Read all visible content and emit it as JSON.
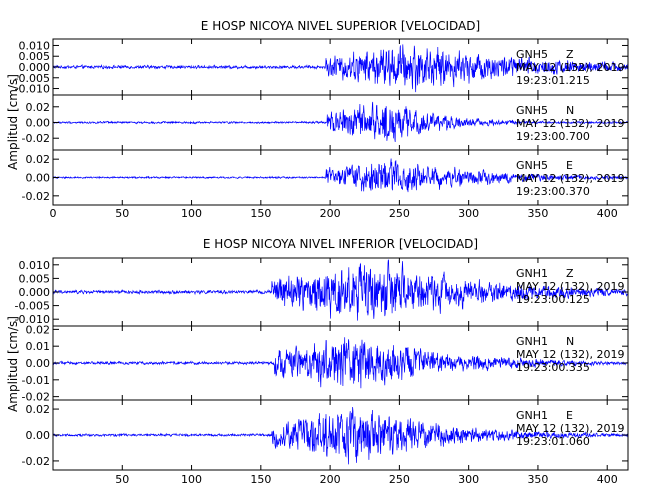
{
  "chart_data": [
    {
      "type": "line",
      "title": "E HOSP NICOYA NIVEL SUPERIOR [VELOCIDAD]",
      "ylabel": "Amplitud [cm/s]",
      "xlim": [
        0,
        415
      ],
      "x_ticks": [
        0,
        50,
        100,
        150,
        200,
        250,
        300,
        350,
        400
      ],
      "line_color": "#0000ff",
      "panels": [
        {
          "id": "sup-z",
          "station": "GNH5",
          "component": "Z",
          "date": "MAY 12 (132), 2019",
          "time": "19:23:01.215",
          "ylim": [
            -0.013,
            0.013
          ],
          "y_ticks": [
            0.01,
            0.005,
            0.0,
            -0.005,
            -0.01
          ],
          "y_tick_labels": [
            "0.010",
            "0.005",
            "0.000",
            "-0.005",
            "-0.010"
          ],
          "onset": 197,
          "peak_time": 260,
          "noise_amp": 0.0007,
          "peak_amp": 0.0105,
          "decay": 0.011
        },
        {
          "id": "sup-n",
          "station": "GNH5",
          "component": "N",
          "date": "MAY 12 (132), 2019",
          "time": "19:23:00.700",
          "ylim": [
            -0.035,
            0.035
          ],
          "y_ticks": [
            0.02,
            0.0,
            -0.02
          ],
          "y_tick_labels": [
            "0.02",
            "0.00",
            "-0.02"
          ],
          "onset": 198,
          "peak_time": 243,
          "noise_amp": 0.0012,
          "peak_amp": 0.026,
          "decay": 0.026
        },
        {
          "id": "sup-e",
          "station": "GNH5",
          "component": "E",
          "date": "MAY 12 (132), 2019",
          "time": "19:23:00.370",
          "ylim": [
            -0.03,
            0.03
          ],
          "y_ticks": [
            0.02,
            0.0,
            -0.02
          ],
          "y_tick_labels": [
            "0.02",
            "0.00",
            "-0.02"
          ],
          "onset": 197,
          "peak_time": 245,
          "noise_amp": 0.0009,
          "peak_amp": 0.02,
          "decay": 0.016
        }
      ]
    },
    {
      "type": "line",
      "title": "E HOSP NICOYA NIVEL INFERIOR [VELOCIDAD]",
      "ylabel": "Amplitud [cm/s]",
      "xlim": [
        0,
        415
      ],
      "x_ticks": [
        50,
        100,
        150,
        200,
        250,
        300,
        350,
        400
      ],
      "line_color": "#0000ff",
      "panels": [
        {
          "id": "inf-z",
          "station": "GNH1",
          "component": "Z",
          "date": "MAY 12 (132), 2019",
          "time": "19:23:00.125",
          "ylim": [
            -0.0125,
            0.0125
          ],
          "y_ticks": [
            0.01,
            0.005,
            0.0,
            -0.005,
            -0.01
          ],
          "y_tick_labels": [
            "0.010",
            "0.005",
            "0.000",
            "-0.005",
            "-0.010"
          ],
          "onset": 158,
          "peak_time": 230,
          "noise_amp": 0.0006,
          "peak_amp": 0.011,
          "decay": 0.012
        },
        {
          "id": "inf-n",
          "station": "GNH1",
          "component": "N",
          "date": "MAY 12 (132), 2019",
          "time": "19:23:00.335",
          "ylim": [
            -0.022,
            0.022
          ],
          "y_ticks": [
            0.02,
            0.01,
            0.0,
            -0.01,
            -0.02
          ],
          "y_tick_labels": [
            "0.02",
            "0.01",
            "0.00",
            "-0.01",
            "-0.02"
          ],
          "onset": 160,
          "peak_time": 215,
          "noise_amp": 0.0008,
          "peak_amp": 0.016,
          "decay": 0.014
        },
        {
          "id": "inf-e",
          "station": "GNH1",
          "component": "E",
          "date": "MAY 12 (132), 2019",
          "time": "19:23:01.060",
          "ylim": [
            -0.027,
            0.027
          ],
          "y_ticks": [
            0.02,
            0.0,
            -0.02
          ],
          "y_tick_labels": [
            "0.02",
            "0.00",
            "-0.02"
          ],
          "onset": 158,
          "peak_time": 220,
          "noise_amp": 0.0009,
          "peak_amp": 0.021,
          "decay": 0.015
        }
      ]
    }
  ]
}
